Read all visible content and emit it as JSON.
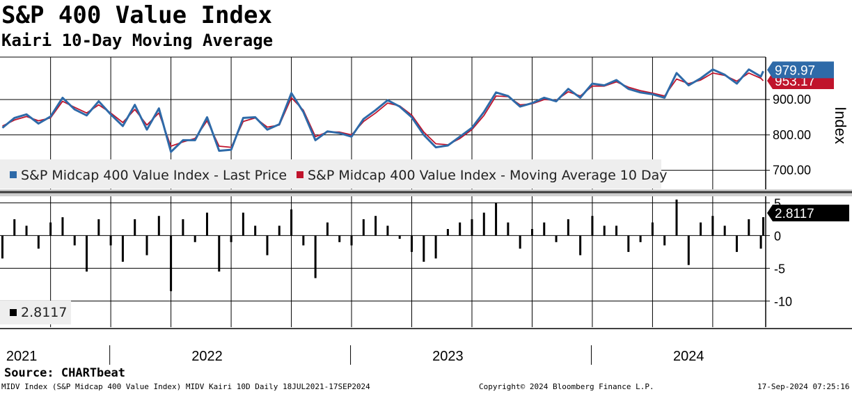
{
  "title": "S&P 400 Value Index",
  "subtitle": "Kairi 10-Day Moving Average",
  "source": "Source: CHARTbeat",
  "footer": {
    "left": "MIDV Index (S&P Midcap 400 Value Index) MIDV Kairi 10D  Daily 18JUL2021-17SEP2024",
    "center": "Copyright© 2024 Bloomberg Finance L.P.",
    "right": "17-Sep-2024 07:25:16"
  },
  "colors": {
    "price": "#2e6aa8",
    "ma": "#c0142c",
    "kairi": "#000000",
    "badge_price": "#2e6aa8",
    "badge_ma": "#c0142c",
    "badge_kairi": "#000000"
  },
  "chart_data": [
    {
      "type": "line",
      "title": "S&P 400 Value Index",
      "ylabel": "Index",
      "ylim": [
        650,
        1020
      ],
      "yticks": [
        700,
        800,
        900
      ],
      "ytick_labels": [
        "700.00",
        "800.00",
        "900.00"
      ],
      "x_labels": [
        "2021",
        "2022",
        "2023",
        "2024"
      ],
      "series": [
        {
          "name": "S&P Midcap 400 Value Index - Last Price",
          "last": 979.97,
          "last_label": "979.97",
          "x": [
            2021.55,
            2021.6,
            2021.65,
            2021.7,
            2021.75,
            2021.8,
            2021.85,
            2021.9,
            2021.95,
            2022.0,
            2022.05,
            2022.1,
            2022.15,
            2022.2,
            2022.25,
            2022.3,
            2022.35,
            2022.4,
            2022.45,
            2022.5,
            2022.55,
            2022.6,
            2022.65,
            2022.7,
            2022.75,
            2022.8,
            2022.85,
            2022.9,
            2022.95,
            2023.0,
            2023.05,
            2023.1,
            2023.15,
            2023.2,
            2023.25,
            2023.3,
            2023.35,
            2023.4,
            2023.45,
            2023.5,
            2023.55,
            2023.6,
            2023.65,
            2023.7,
            2023.75,
            2023.8,
            2023.85,
            2023.9,
            2023.95,
            2024.0,
            2024.05,
            2024.1,
            2024.15,
            2024.2,
            2024.25,
            2024.3,
            2024.35,
            2024.4,
            2024.45,
            2024.5,
            2024.55,
            2024.6,
            2024.65,
            2024.7,
            2024.71
          ],
          "values": [
            820,
            848,
            858,
            832,
            852,
            905,
            872,
            855,
            895,
            858,
            825,
            885,
            815,
            875,
            752,
            785,
            785,
            850,
            755,
            758,
            848,
            850,
            815,
            830,
            918,
            865,
            785,
            810,
            805,
            795,
            845,
            870,
            898,
            880,
            850,
            800,
            765,
            770,
            795,
            820,
            865,
            920,
            910,
            880,
            890,
            905,
            895,
            930,
            905,
            945,
            940,
            955,
            930,
            920,
            915,
            905,
            975,
            940,
            960,
            985,
            970,
            945,
            985,
            965,
            980
          ]
        },
        {
          "name": "S&P Midcap 400 Value Index - Moving Average 10 Day",
          "last": 953.17,
          "last_label": "953.17",
          "x": [
            2021.55,
            2021.6,
            2021.65,
            2021.7,
            2021.75,
            2021.8,
            2021.85,
            2021.9,
            2021.95,
            2022.0,
            2022.05,
            2022.1,
            2022.15,
            2022.2,
            2022.25,
            2022.3,
            2022.35,
            2022.4,
            2022.45,
            2022.5,
            2022.55,
            2022.6,
            2022.65,
            2022.7,
            2022.75,
            2022.8,
            2022.85,
            2022.9,
            2022.95,
            2023.0,
            2023.05,
            2023.1,
            2023.15,
            2023.2,
            2023.25,
            2023.3,
            2023.35,
            2023.4,
            2023.45,
            2023.5,
            2023.55,
            2023.6,
            2023.65,
            2023.7,
            2023.75,
            2023.8,
            2023.85,
            2023.9,
            2023.95,
            2024.0,
            2024.05,
            2024.1,
            2024.15,
            2024.2,
            2024.25,
            2024.3,
            2024.35,
            2024.4,
            2024.45,
            2024.5,
            2024.55,
            2024.6,
            2024.65,
            2024.7,
            2024.71
          ],
          "values": [
            825,
            842,
            852,
            840,
            848,
            895,
            878,
            862,
            885,
            862,
            835,
            872,
            828,
            862,
            768,
            780,
            790,
            840,
            768,
            765,
            838,
            848,
            822,
            828,
            905,
            870,
            795,
            808,
            808,
            800,
            838,
            862,
            890,
            882,
            856,
            808,
            775,
            772,
            790,
            815,
            855,
            910,
            908,
            885,
            888,
            900,
            898,
            922,
            910,
            938,
            938,
            950,
            935,
            925,
            918,
            910,
            958,
            945,
            955,
            975,
            968,
            952,
            975,
            960,
            953
          ]
        }
      ]
    },
    {
      "type": "bar",
      "title": "Kairi 10-Day Moving Average",
      "ylim": [
        -14,
        6
      ],
      "yticks": [
        5,
        0,
        -5,
        -10
      ],
      "ytick_labels": [
        "5",
        "0",
        "-5",
        "-10"
      ],
      "series": [
        {
          "name": "Kairi 10D",
          "last": 2.8117,
          "last_label": "2.8117",
          "x": [
            2021.55,
            2021.6,
            2021.65,
            2021.7,
            2021.75,
            2021.8,
            2021.85,
            2021.9,
            2021.95,
            2022.0,
            2022.05,
            2022.1,
            2022.15,
            2022.2,
            2022.25,
            2022.3,
            2022.35,
            2022.4,
            2022.45,
            2022.5,
            2022.55,
            2022.6,
            2022.65,
            2022.7,
            2022.75,
            2022.8,
            2022.85,
            2022.9,
            2022.95,
            2023.0,
            2023.05,
            2023.1,
            2023.15,
            2023.2,
            2023.25,
            2023.3,
            2023.35,
            2023.4,
            2023.45,
            2023.5,
            2023.55,
            2023.6,
            2023.65,
            2023.7,
            2023.75,
            2023.8,
            2023.85,
            2023.9,
            2023.95,
            2024.0,
            2024.05,
            2024.1,
            2024.15,
            2024.2,
            2024.25,
            2024.3,
            2024.35,
            2024.4,
            2024.45,
            2024.5,
            2024.55,
            2024.6,
            2024.65,
            2024.7,
            2024.71
          ],
          "values": [
            -3.5,
            2.5,
            1.5,
            -2.0,
            2.0,
            2.8,
            -1.5,
            -5.5,
            2.5,
            -1.5,
            -4.0,
            2.5,
            -3.0,
            3.0,
            -8.5,
            2.5,
            -1.0,
            3.5,
            -5.5,
            -1.0,
            3.5,
            1.5,
            -3.0,
            1.5,
            4.0,
            -1.5,
            -6.5,
            2.0,
            -1.0,
            -1.5,
            2.5,
            3.0,
            1.5,
            -0.5,
            -2.5,
            -4.0,
            -3.5,
            1.0,
            2.0,
            2.5,
            3.5,
            5.0,
            2.0,
            -2.0,
            1.0,
            2.0,
            -1.0,
            2.5,
            -3.0,
            3.0,
            1.5,
            1.5,
            -2.5,
            -1.0,
            2.0,
            -1.5,
            5.5,
            -4.5,
            2.0,
            3.0,
            1.5,
            -2.5,
            2.5,
            -2.0,
            2.8117
          ]
        }
      ]
    }
  ]
}
